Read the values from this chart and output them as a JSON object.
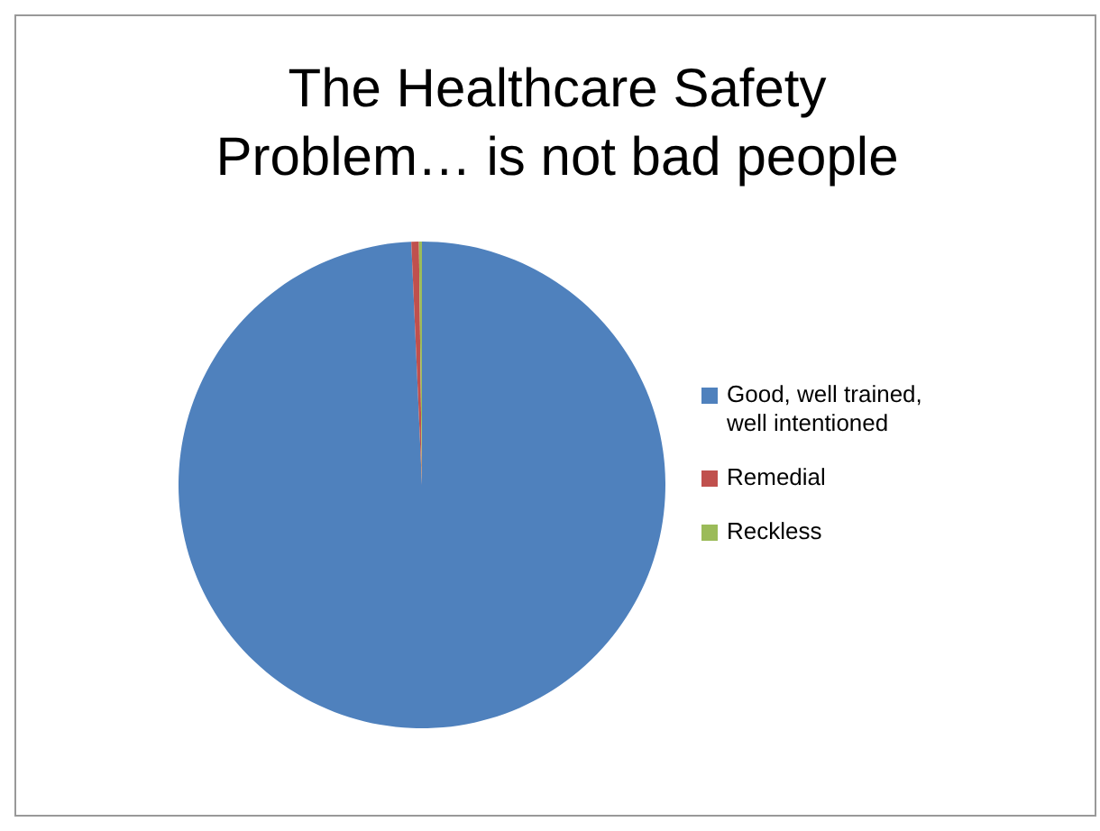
{
  "chart_data": {
    "type": "pie",
    "title": "The Healthcare Safety Problem… is not bad people",
    "categories": [
      "Good, well trained, well intentioned",
      "Remedial",
      "Reckless"
    ],
    "values": [
      99.3,
      0.5,
      0.2
    ],
    "colors": [
      "#4f81bd",
      "#c0504d",
      "#9bbb59"
    ],
    "legend": "right"
  }
}
